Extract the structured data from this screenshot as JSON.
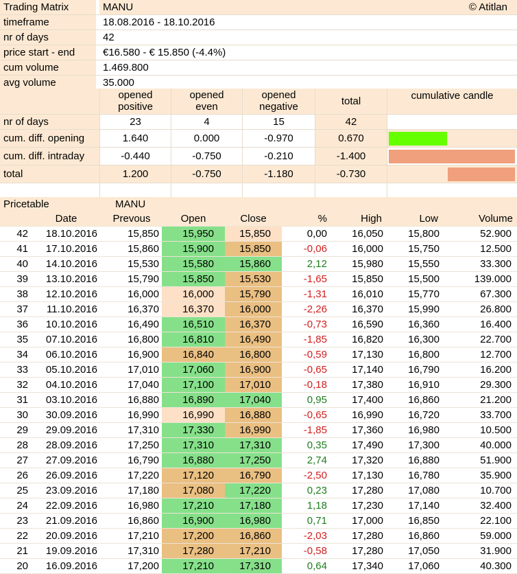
{
  "header": {
    "title_label": "Trading Matrix",
    "symbol": "MANU",
    "copyright": "© Atitlan",
    "rows": [
      {
        "label": "timeframe",
        "value": "18.08.2016 - 18.10.2016"
      },
      {
        "label": "nr of days",
        "value": "42"
      },
      {
        "label": "price start - end",
        "value": "€16.580 - € 15.850 (-4.4%)"
      },
      {
        "label": "cum volume",
        "value": "1.469.800"
      },
      {
        "label": "avg volume",
        "value": "35.000"
      }
    ]
  },
  "matrix": {
    "col_headers": [
      {
        "line1": "opened",
        "line2": "positive"
      },
      {
        "line1": "opened",
        "line2": "even"
      },
      {
        "line1": "opened",
        "line2": "negative"
      }
    ],
    "total_header": "total",
    "candle_header": "cumulative candle",
    "rows": [
      {
        "label": "nr of days",
        "values": [
          "23",
          "4",
          "15",
          "42"
        ]
      },
      {
        "label": "cum. diff. opening",
        "values": [
          "1.640",
          "0.000",
          "-0.970",
          "0.670"
        ]
      },
      {
        "label": "cum. diff. intraday",
        "values": [
          "-0.440",
          "-0.750",
          "-0.210",
          "-1.400"
        ]
      },
      {
        "label": "total",
        "values": [
          "1.200",
          "-0.750",
          "-1.180",
          "-0.730"
        ]
      }
    ],
    "colors": {
      "candle_up": "#66ff00",
      "candle_down": "#f0a07c"
    }
  },
  "pricetable": {
    "title": "Pricetable",
    "symbol": "MANU",
    "columns": [
      "",
      "Date",
      "Prevous",
      "Open",
      "Close",
      "%",
      "High",
      "Low",
      "Volume"
    ],
    "rows": [
      {
        "n": "42",
        "date": "18.10.2016",
        "prev": "15,850",
        "open": "15,950",
        "close": "15,850",
        "pct": "0,00",
        "high": "16,050",
        "low": "15,800",
        "vol": "52.900",
        "oc": "green",
        "cc": "light",
        "sign": "zero"
      },
      {
        "n": "41",
        "date": "17.10.2016",
        "prev": "15,860",
        "open": "15,900",
        "close": "15,850",
        "pct": "-0,06",
        "high": "16,000",
        "low": "15,750",
        "vol": "12.500",
        "oc": "green",
        "cc": "orange",
        "sign": "neg"
      },
      {
        "n": "40",
        "date": "14.10.2016",
        "prev": "15,530",
        "open": "15,580",
        "close": "15,860",
        "pct": "2,12",
        "high": "15,980",
        "low": "15,550",
        "vol": "33.300",
        "oc": "green",
        "cc": "green",
        "sign": "pos"
      },
      {
        "n": "39",
        "date": "13.10.2016",
        "prev": "15,790",
        "open": "15,850",
        "close": "15,530",
        "pct": "-1,65",
        "high": "15,850",
        "low": "15,500",
        "vol": "139.000",
        "oc": "green",
        "cc": "orange",
        "sign": "neg"
      },
      {
        "n": "38",
        "date": "12.10.2016",
        "prev": "16,000",
        "open": "16,000",
        "close": "15,790",
        "pct": "-1,31",
        "high": "16,010",
        "low": "15,770",
        "vol": "67.300",
        "oc": "light",
        "cc": "orange",
        "sign": "neg"
      },
      {
        "n": "37",
        "date": "11.10.2016",
        "prev": "16,370",
        "open": "16,370",
        "close": "16,000",
        "pct": "-2,26",
        "high": "16,370",
        "low": "15,990",
        "vol": "26.800",
        "oc": "light",
        "cc": "orange",
        "sign": "neg"
      },
      {
        "n": "36",
        "date": "10.10.2016",
        "prev": "16,490",
        "open": "16,510",
        "close": "16,370",
        "pct": "-0,73",
        "high": "16,590",
        "low": "16,360",
        "vol": "16.400",
        "oc": "green",
        "cc": "orange",
        "sign": "neg"
      },
      {
        "n": "35",
        "date": "07.10.2016",
        "prev": "16,800",
        "open": "16,810",
        "close": "16,490",
        "pct": "-1,85",
        "high": "16,820",
        "low": "16,300",
        "vol": "22.700",
        "oc": "green",
        "cc": "orange",
        "sign": "neg"
      },
      {
        "n": "34",
        "date": "06.10.2016",
        "prev": "16,900",
        "open": "16,840",
        "close": "16,800",
        "pct": "-0,59",
        "high": "17,130",
        "low": "16,800",
        "vol": "12.700",
        "oc": "orange",
        "cc": "orange",
        "sign": "neg"
      },
      {
        "n": "33",
        "date": "05.10.2016",
        "prev": "17,010",
        "open": "17,060",
        "close": "16,900",
        "pct": "-0,65",
        "high": "17,140",
        "low": "16,790",
        "vol": "16.200",
        "oc": "green",
        "cc": "orange",
        "sign": "neg"
      },
      {
        "n": "32",
        "date": "04.10.2016",
        "prev": "17,040",
        "open": "17,100",
        "close": "17,010",
        "pct": "-0,18",
        "high": "17,380",
        "low": "16,910",
        "vol": "29.300",
        "oc": "green",
        "cc": "orange",
        "sign": "neg"
      },
      {
        "n": "31",
        "date": "03.10.2016",
        "prev": "16,880",
        "open": "16,890",
        "close": "17,040",
        "pct": "0,95",
        "high": "17,400",
        "low": "16,860",
        "vol": "21.200",
        "oc": "green",
        "cc": "green",
        "sign": "pos"
      },
      {
        "n": "30",
        "date": "30.09.2016",
        "prev": "16,990",
        "open": "16,990",
        "close": "16,880",
        "pct": "-0,65",
        "high": "16,990",
        "low": "16,720",
        "vol": "33.700",
        "oc": "light",
        "cc": "orange",
        "sign": "neg"
      },
      {
        "n": "29",
        "date": "29.09.2016",
        "prev": "17,310",
        "open": "17,330",
        "close": "16,990",
        "pct": "-1,85",
        "high": "17,360",
        "low": "16,980",
        "vol": "10.500",
        "oc": "green",
        "cc": "orange",
        "sign": "neg"
      },
      {
        "n": "28",
        "date": "28.09.2016",
        "prev": "17,250",
        "open": "17,310",
        "close": "17,310",
        "pct": "0,35",
        "high": "17,490",
        "low": "17,300",
        "vol": "40.000",
        "oc": "green",
        "cc": "green",
        "sign": "pos"
      },
      {
        "n": "27",
        "date": "27.09.2016",
        "prev": "16,790",
        "open": "16,880",
        "close": "17,250",
        "pct": "2,74",
        "high": "17,320",
        "low": "16,880",
        "vol": "51.900",
        "oc": "green",
        "cc": "green",
        "sign": "pos"
      },
      {
        "n": "26",
        "date": "26.09.2016",
        "prev": "17,220",
        "open": "17,120",
        "close": "16,790",
        "pct": "-2,50",
        "high": "17,130",
        "low": "16,780",
        "vol": "35.900",
        "oc": "orange",
        "cc": "orange",
        "sign": "neg"
      },
      {
        "n": "25",
        "date": "23.09.2016",
        "prev": "17,180",
        "open": "17,080",
        "close": "17,220",
        "pct": "0,23",
        "high": "17,280",
        "low": "17,080",
        "vol": "10.700",
        "oc": "orange",
        "cc": "green",
        "sign": "pos"
      },
      {
        "n": "24",
        "date": "22.09.2016",
        "prev": "16,980",
        "open": "17,210",
        "close": "17,180",
        "pct": "1,18",
        "high": "17,230",
        "low": "17,140",
        "vol": "32.400",
        "oc": "green",
        "cc": "green",
        "sign": "pos"
      },
      {
        "n": "23",
        "date": "21.09.2016",
        "prev": "16,860",
        "open": "16,900",
        "close": "16,980",
        "pct": "0,71",
        "high": "17,000",
        "low": "16,850",
        "vol": "22.100",
        "oc": "green",
        "cc": "green",
        "sign": "pos"
      },
      {
        "n": "22",
        "date": "20.09.2016",
        "prev": "17,210",
        "open": "17,200",
        "close": "16,860",
        "pct": "-2,03",
        "high": "17,280",
        "low": "16,860",
        "vol": "59.000",
        "oc": "orange",
        "cc": "orange",
        "sign": "neg"
      },
      {
        "n": "21",
        "date": "19.09.2016",
        "prev": "17,310",
        "open": "17,280",
        "close": "17,210",
        "pct": "-0,58",
        "high": "17,280",
        "low": "17,050",
        "vol": "31.900",
        "oc": "orange",
        "cc": "orange",
        "sign": "neg"
      },
      {
        "n": "20",
        "date": "16.09.2016",
        "prev": "17,200",
        "open": "17,210",
        "close": "17,310",
        "pct": "0,64",
        "high": "17,340",
        "low": "17,060",
        "vol": "40.300",
        "oc": "green",
        "cc": "green",
        "sign": "pos"
      }
    ]
  }
}
